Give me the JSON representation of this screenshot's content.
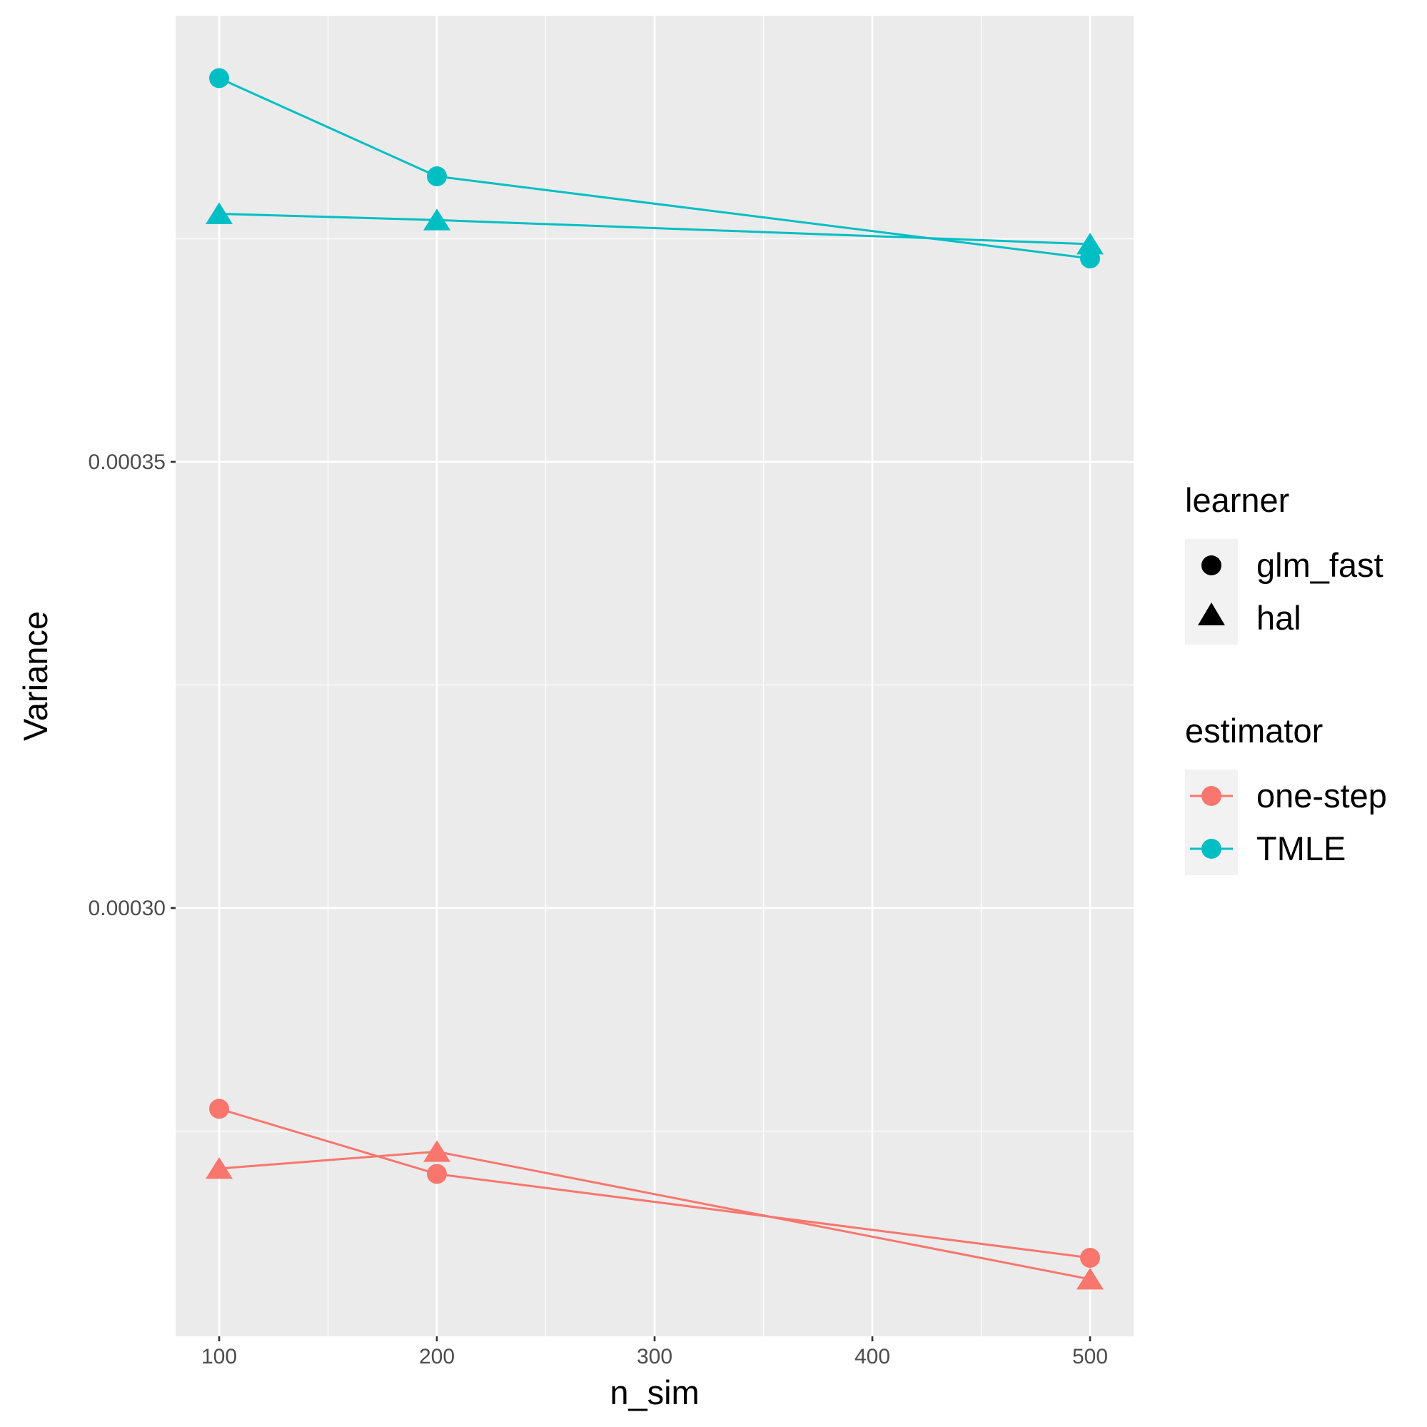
{
  "chart_data": {
    "type": "line",
    "xlabel": "n_sim",
    "ylabel": "Variance",
    "x_ticks": [
      100,
      200,
      300,
      400,
      500
    ],
    "y_ticks": [
      0.0003,
      0.00035
    ],
    "y_tick_labels": [
      "0.00030",
      "0.00035"
    ],
    "xlim": [
      80,
      520
    ],
    "ylim": [
      0.000252,
      0.0004
    ],
    "grid": true,
    "panel_background": "#EBEBEB",
    "legend_position": "right",
    "legends": {
      "learner": {
        "title": "learner",
        "entries": [
          {
            "label": "glm_fast",
            "shape": "circle"
          },
          {
            "label": "hal",
            "shape": "triangle"
          }
        ]
      },
      "estimator": {
        "title": "estimator",
        "entries": [
          {
            "label": "one-step",
            "color": "#F8766D"
          },
          {
            "label": "TMLE",
            "color": "#00BFC4"
          }
        ]
      }
    },
    "series": [
      {
        "estimator": "TMLE",
        "learner": "glm_fast",
        "color": "#00BFC4",
        "shape": "circle",
        "x": [
          100,
          200,
          500
        ],
        "y": [
          0.000393,
          0.000382,
          0.0003728
        ]
      },
      {
        "estimator": "TMLE",
        "learner": "hal",
        "color": "#00BFC4",
        "shape": "triangle",
        "x": [
          100,
          200,
          500
        ],
        "y": [
          0.0003778,
          0.0003771,
          0.0003744
        ]
      },
      {
        "estimator": "one-step",
        "learner": "glm_fast",
        "color": "#F8766D",
        "shape": "circle",
        "x": [
          100,
          200,
          500
        ],
        "y": [
          0.0002775,
          0.0002702,
          0.0002608
        ]
      },
      {
        "estimator": "one-step",
        "learner": "hal",
        "color": "#F8766D",
        "shape": "triangle",
        "x": [
          100,
          200,
          500
        ],
        "y": [
          0.0002708,
          0.0002727,
          0.0002584
        ]
      }
    ]
  }
}
